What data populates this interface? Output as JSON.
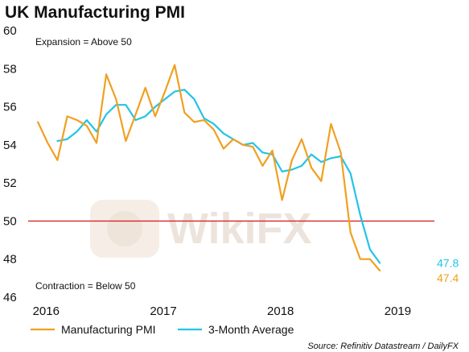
{
  "chart_data": {
    "type": "line",
    "title": "UK Manufacturing PMI",
    "ylim": [
      46,
      60
    ],
    "yticks": [
      46,
      48,
      50,
      52,
      54,
      56,
      58,
      60
    ],
    "x_range": [
      "2015-11",
      "2019-05"
    ],
    "xticks": [
      {
        "label": "2016",
        "x": "2016-01"
      },
      {
        "label": "2017",
        "x": "2017-01"
      },
      {
        "label": "2018",
        "x": "2018-01"
      },
      {
        "label": "2019",
        "x": "2019-01"
      }
    ],
    "reference_line": {
      "y": 50,
      "color": "#d62728"
    },
    "annotations": {
      "expansion": "Expansion = Above 50",
      "contraction": "Contraction = Below 50"
    },
    "series": [
      {
        "name": "Manufacturing PMI",
        "color": "#f0a020",
        "end_label": "47.4",
        "points": [
          [
            "2015-12",
            55.2
          ],
          [
            "2016-01",
            54.1
          ],
          [
            "2016-02",
            53.2
          ],
          [
            "2016-03",
            55.5
          ],
          [
            "2016-04",
            55.3
          ],
          [
            "2016-05",
            55.0
          ],
          [
            "2016-06",
            54.1
          ],
          [
            "2016-07",
            57.7
          ],
          [
            "2016-08",
            56.4
          ],
          [
            "2016-09",
            54.2
          ],
          [
            "2016-10",
            55.6
          ],
          [
            "2016-11",
            57.0
          ],
          [
            "2016-12",
            55.5
          ],
          [
            "2017-01",
            56.8
          ],
          [
            "2017-02",
            58.2
          ],
          [
            "2017-03",
            55.7
          ],
          [
            "2017-04",
            55.2
          ],
          [
            "2017-05",
            55.3
          ],
          [
            "2017-06",
            54.8
          ],
          [
            "2017-07",
            53.8
          ],
          [
            "2017-08",
            54.3
          ],
          [
            "2017-09",
            54.0
          ],
          [
            "2017-10",
            53.9
          ],
          [
            "2017-11",
            52.9
          ],
          [
            "2017-12",
            53.7
          ],
          [
            "2018-01",
            51.1
          ],
          [
            "2018-02",
            53.2
          ],
          [
            "2018-03",
            54.3
          ],
          [
            "2018-04",
            52.8
          ],
          [
            "2018-05",
            52.1
          ],
          [
            "2018-06",
            55.1
          ],
          [
            "2018-07",
            53.6
          ],
          [
            "2018-08",
            49.4
          ],
          [
            "2018-09",
            48.0
          ],
          [
            "2018-10",
            48.0
          ],
          [
            "2018-11",
            47.4
          ]
        ]
      },
      {
        "name": "3-Month Average",
        "color": "#22c4e8",
        "end_label": "47.8",
        "points": [
          [
            "2016-02",
            54.2
          ],
          [
            "2016-03",
            54.3
          ],
          [
            "2016-04",
            54.7
          ],
          [
            "2016-05",
            55.3
          ],
          [
            "2016-06",
            54.7
          ],
          [
            "2016-07",
            55.6
          ],
          [
            "2016-08",
            56.1
          ],
          [
            "2016-09",
            56.1
          ],
          [
            "2016-10",
            55.3
          ],
          [
            "2016-11",
            55.5
          ],
          [
            "2016-12",
            56.0
          ],
          [
            "2017-01",
            56.4
          ],
          [
            "2017-02",
            56.8
          ],
          [
            "2017-03",
            56.9
          ],
          [
            "2017-04",
            56.4
          ],
          [
            "2017-05",
            55.4
          ],
          [
            "2017-06",
            55.1
          ],
          [
            "2017-07",
            54.6
          ],
          [
            "2017-08",
            54.3
          ],
          [
            "2017-09",
            54.0
          ],
          [
            "2017-10",
            54.1
          ],
          [
            "2017-11",
            53.6
          ],
          [
            "2017-12",
            53.5
          ],
          [
            "2018-01",
            52.6
          ],
          [
            "2018-02",
            52.7
          ],
          [
            "2018-03",
            52.9
          ],
          [
            "2018-04",
            53.5
          ],
          [
            "2018-05",
            53.1
          ],
          [
            "2018-06",
            53.3
          ],
          [
            "2018-07",
            53.4
          ],
          [
            "2018-08",
            52.5
          ],
          [
            "2018-09",
            50.3
          ],
          [
            "2018-10",
            48.5
          ],
          [
            "2018-11",
            47.8
          ]
        ]
      }
    ],
    "legend": {
      "placement": "bottom-left"
    },
    "source": "Source: Refinitiv Datastream / DailyFX",
    "watermark": "WikiFX"
  }
}
